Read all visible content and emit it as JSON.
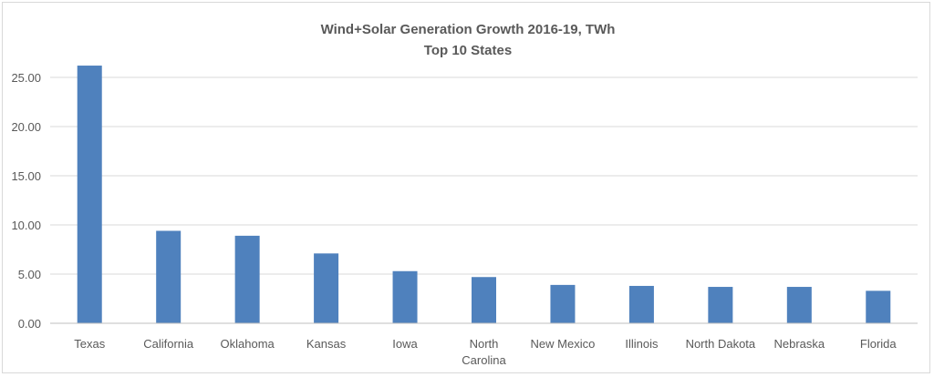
{
  "chart_data": {
    "type": "bar",
    "title": "Wind+Solar Generation Growth 2016-19, TWh",
    "subtitle": "Top 10 States",
    "xlabel": "",
    "ylabel": "",
    "categories": [
      "Texas",
      "California",
      "Oklahoma",
      "Kansas",
      "Iowa",
      "North Carolina",
      "New Mexico",
      "Illinois",
      "North Dakota",
      "Nebraska",
      "Florida"
    ],
    "category_lines": [
      [
        "Texas"
      ],
      [
        "California"
      ],
      [
        "Oklahoma"
      ],
      [
        "Kansas"
      ],
      [
        "Iowa"
      ],
      [
        "North",
        "Carolina"
      ],
      [
        "New Mexico"
      ],
      [
        "Illinois"
      ],
      [
        "North Dakota"
      ],
      [
        "Nebraska"
      ],
      [
        "Florida"
      ]
    ],
    "values": [
      26.2,
      9.4,
      8.9,
      7.1,
      5.3,
      4.7,
      3.9,
      3.8,
      3.7,
      3.7,
      3.3
    ],
    "ylim": [
      0,
      25
    ],
    "yticks": [
      "0.00",
      "5.00",
      "10.00",
      "15.00",
      "20.00",
      "25.00"
    ],
    "grid": true,
    "legend": "none",
    "bar_color": "#4f81bd"
  }
}
